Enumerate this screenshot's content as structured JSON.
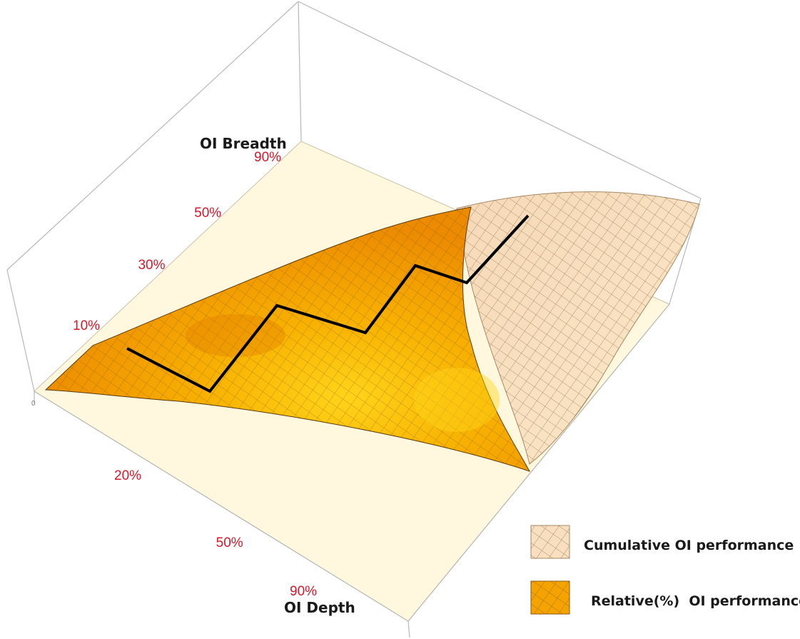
{
  "chart_data": {
    "type": "surface",
    "axes": {
      "breadth": {
        "label": "OI Breadth",
        "ticks": [
          "10%",
          "30%",
          "50%",
          "90%"
        ],
        "values": [
          10,
          30,
          50,
          90
        ]
      },
      "depth": {
        "label": "OI Depth",
        "ticks": [
          "20%",
          "50%",
          "90%"
        ],
        "values": [
          20,
          50,
          90
        ]
      }
    },
    "surfaces": [
      {
        "name": "Cumulative OI performance",
        "color": "#f7d6a8"
      },
      {
        "name": "Relative(%)  OI performance",
        "color": "#f5a300"
      }
    ],
    "path_line": {
      "color": "#000000"
    },
    "corner_tick": "0",
    "colors": {
      "floor": "#fff8de",
      "box": "#b8b8b8",
      "tick_text": "#d9182b",
      "surface_highlight": "#ffd41a",
      "surface_shadow": "#e07800",
      "grid": "#3a2a10"
    }
  }
}
